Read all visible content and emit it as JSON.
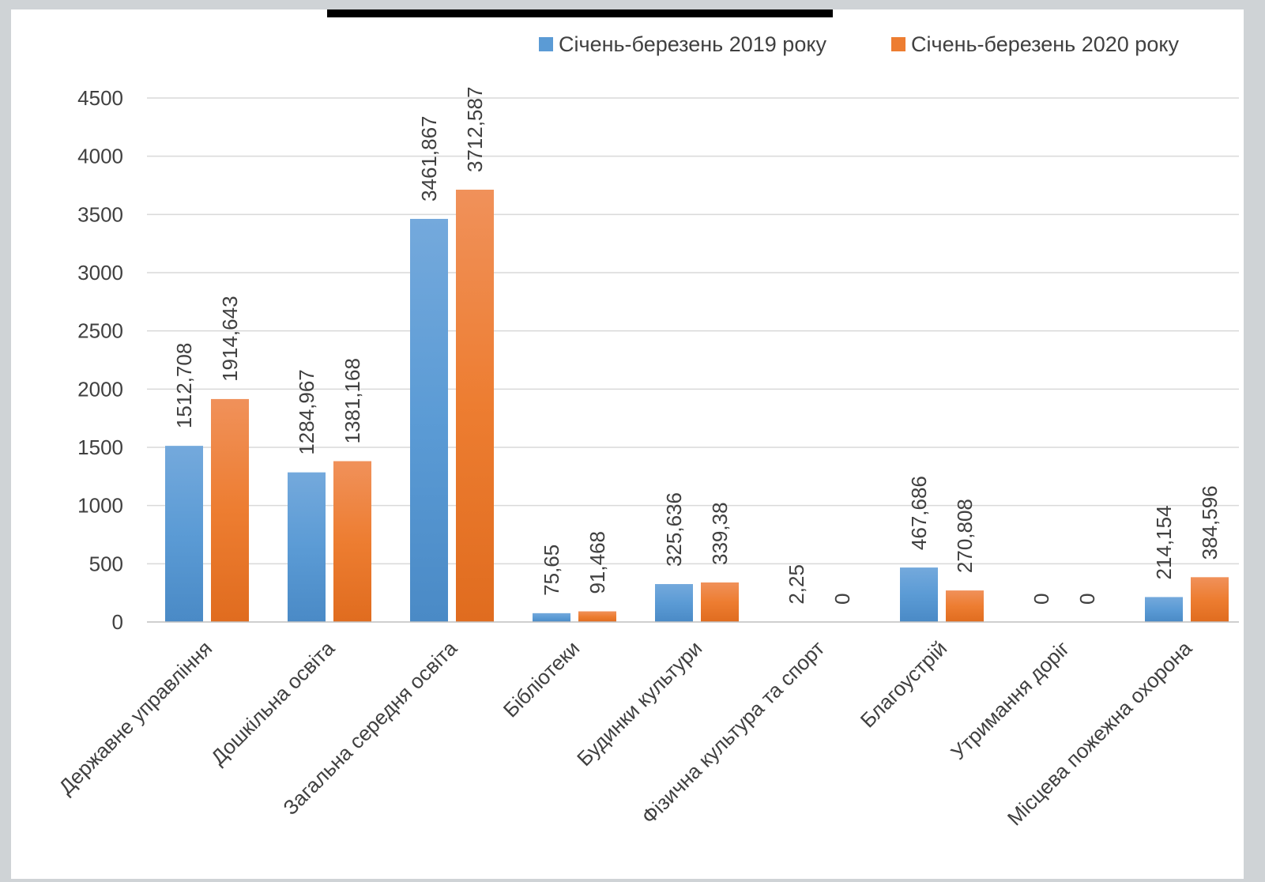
{
  "chart_data": {
    "type": "bar",
    "title": "",
    "xlabel": "",
    "ylabel": "",
    "ylim": [
      0,
      4500
    ],
    "yticks": [
      0,
      500,
      1000,
      1500,
      2000,
      2500,
      3000,
      3500,
      4000,
      4500
    ],
    "grid": true,
    "legend_position": "top-right",
    "categories": [
      "Державне управління",
      "Дошкільна освіта",
      "Загальна середня освіта",
      "Бібліотеки",
      "Будинки культури",
      "Фізична культура та спорт",
      "Благоустрій",
      "Утримання доріг",
      "Місцева пожежна охорона"
    ],
    "series": [
      {
        "name": "Січень-березень 2019 року",
        "color": "#5b9bd5",
        "values": [
          1512.708,
          1284.967,
          3461.867,
          75.65,
          325.636,
          2.25,
          467.686,
          0,
          214.154
        ],
        "labels": [
          "1512,708",
          "1284,967",
          "3461,867",
          "75,65",
          "325,636",
          "2,25",
          "467,686",
          "0",
          "214,154"
        ]
      },
      {
        "name": "Січень-березень 2020 року",
        "color": "#ed7d31",
        "values": [
          1914.643,
          1381.168,
          3712.587,
          91.468,
          339.38,
          0,
          270.808,
          0,
          384.596
        ],
        "labels": [
          "1914,643",
          "1381,168",
          "3712,587",
          "91,468",
          "339,38",
          "0",
          "270,808",
          "0",
          "384,596"
        ]
      }
    ]
  }
}
